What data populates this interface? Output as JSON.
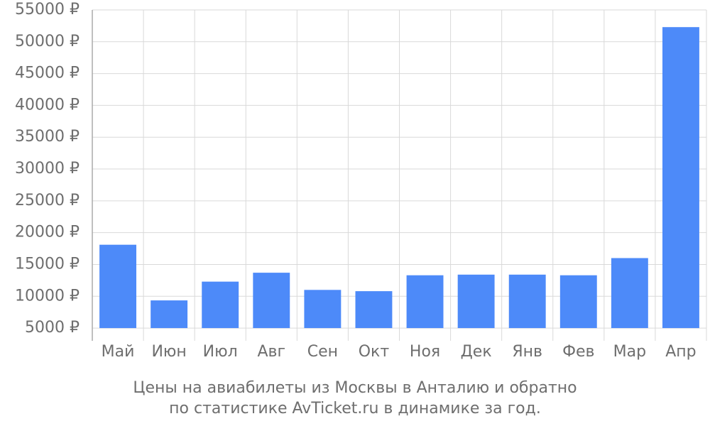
{
  "chart_data": {
    "type": "bar",
    "title": "Цены на авиабилеты из Москвы в Анталию и обратно",
    "subtitle": "по статистике AvTicket.ru в динамике за год.",
    "categories": [
      "Май",
      "Июн",
      "Июл",
      "Авг",
      "Сен",
      "Окт",
      "Ноя",
      "Дек",
      "Янв",
      "Фев",
      "Мар",
      "Апр"
    ],
    "values": [
      18100,
      9350,
      12300,
      13700,
      11000,
      10800,
      13300,
      13400,
      13400,
      13300,
      16000,
      52300
    ],
    "color": "#4d8af9",
    "ylim": [
      3000,
      55000
    ],
    "yticks": [
      {
        "value": 5000,
        "label": "5000 ₽"
      },
      {
        "value": 10000,
        "label": "10000 ₽"
      },
      {
        "value": 15000,
        "label": "15000 ₽"
      },
      {
        "value": 20000,
        "label": "20000 ₽"
      },
      {
        "value": 25000,
        "label": "25000 ₽"
      },
      {
        "value": 30000,
        "label": "30000 ₽"
      },
      {
        "value": 35000,
        "label": "35000 ₽"
      },
      {
        "value": 40000,
        "label": "40000 ₽"
      },
      {
        "value": 45000,
        "label": "45000 ₽"
      },
      {
        "value": 50000,
        "label": "50000 ₽"
      },
      {
        "value": 55000,
        "label": "55000 ₽"
      }
    ],
    "grid": true
  }
}
